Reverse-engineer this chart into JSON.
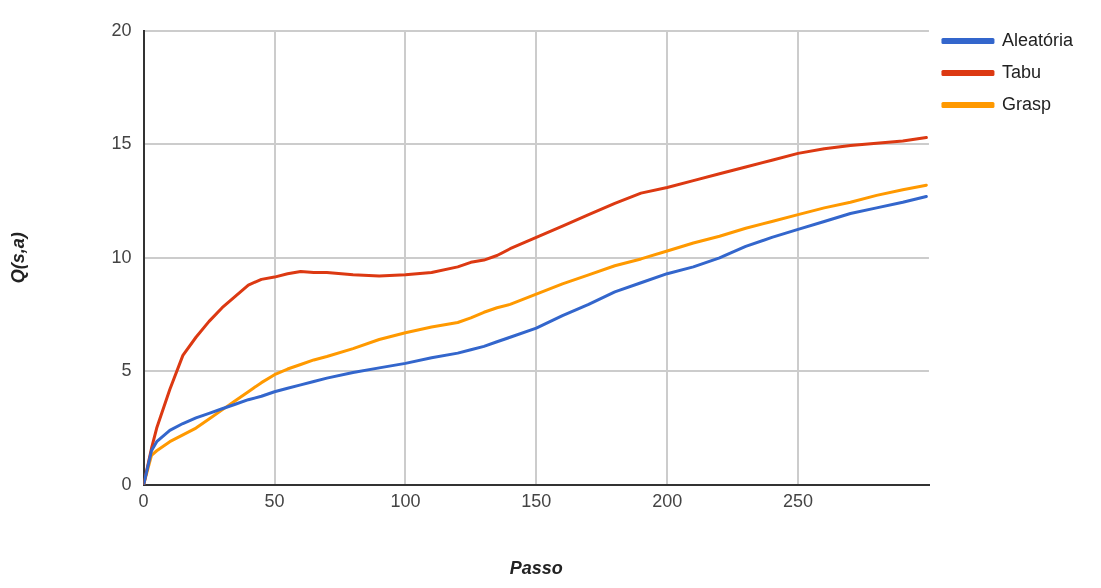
{
  "chart_data": {
    "type": "line",
    "xlabel": "Passo",
    "ylabel": "Q(s,a)",
    "xlim": [
      0,
      300
    ],
    "xticks": [
      0,
      50,
      100,
      150,
      200,
      250
    ],
    "ylim": [
      0,
      20
    ],
    "yticks": [
      0,
      5,
      10,
      15,
      20
    ],
    "grid": true,
    "legend": "top right",
    "marker": "none",
    "line_style": "solid",
    "x": [
      0,
      3,
      5,
      10,
      15,
      20,
      25,
      30,
      35,
      40,
      45,
      50,
      55,
      60,
      65,
      70,
      80,
      90,
      100,
      110,
      120,
      125,
      130,
      135,
      140,
      150,
      160,
      170,
      180,
      190,
      200,
      210,
      220,
      230,
      240,
      250,
      260,
      270,
      280,
      290,
      299
    ],
    "series": [
      {
        "name": "Aleatória",
        "color": "#3366cc",
        "values": [
          0,
          1.5,
          1.9,
          2.4,
          2.7,
          2.95,
          3.15,
          3.35,
          3.55,
          3.75,
          3.9,
          4.1,
          4.25,
          4.4,
          4.55,
          4.7,
          4.95,
          5.15,
          5.35,
          5.6,
          5.8,
          5.95,
          6.1,
          6.3,
          6.5,
          6.9,
          7.45,
          7.95,
          8.5,
          8.9,
          9.3,
          9.6,
          10.0,
          10.5,
          10.9,
          11.25,
          11.6,
          11.95,
          12.2,
          12.45,
          12.7
        ]
      },
      {
        "name": "Tabu",
        "color": "#dc3912",
        "values": [
          0,
          1.6,
          2.5,
          4.2,
          5.7,
          6.5,
          7.2,
          7.8,
          8.3,
          8.8,
          9.05,
          9.15,
          9.3,
          9.4,
          9.35,
          9.35,
          9.25,
          9.2,
          9.25,
          9.35,
          9.6,
          9.8,
          9.9,
          10.1,
          10.4,
          10.9,
          11.4,
          11.9,
          12.4,
          12.85,
          13.1,
          13.4,
          13.7,
          14.0,
          14.3,
          14.6,
          14.8,
          14.95,
          15.05,
          15.15,
          15.3
        ]
      },
      {
        "name": "Grasp",
        "color": "#ff9900",
        "values": [
          0,
          1.3,
          1.5,
          1.9,
          2.2,
          2.5,
          2.9,
          3.3,
          3.7,
          4.1,
          4.5,
          4.85,
          5.1,
          5.3,
          5.5,
          5.65,
          6.0,
          6.4,
          6.7,
          6.95,
          7.15,
          7.35,
          7.6,
          7.8,
          7.95,
          8.4,
          8.85,
          9.25,
          9.65,
          9.95,
          10.3,
          10.65,
          10.95,
          11.3,
          11.6,
          11.9,
          12.2,
          12.45,
          12.75,
          13.0,
          13.2
        ]
      }
    ]
  }
}
